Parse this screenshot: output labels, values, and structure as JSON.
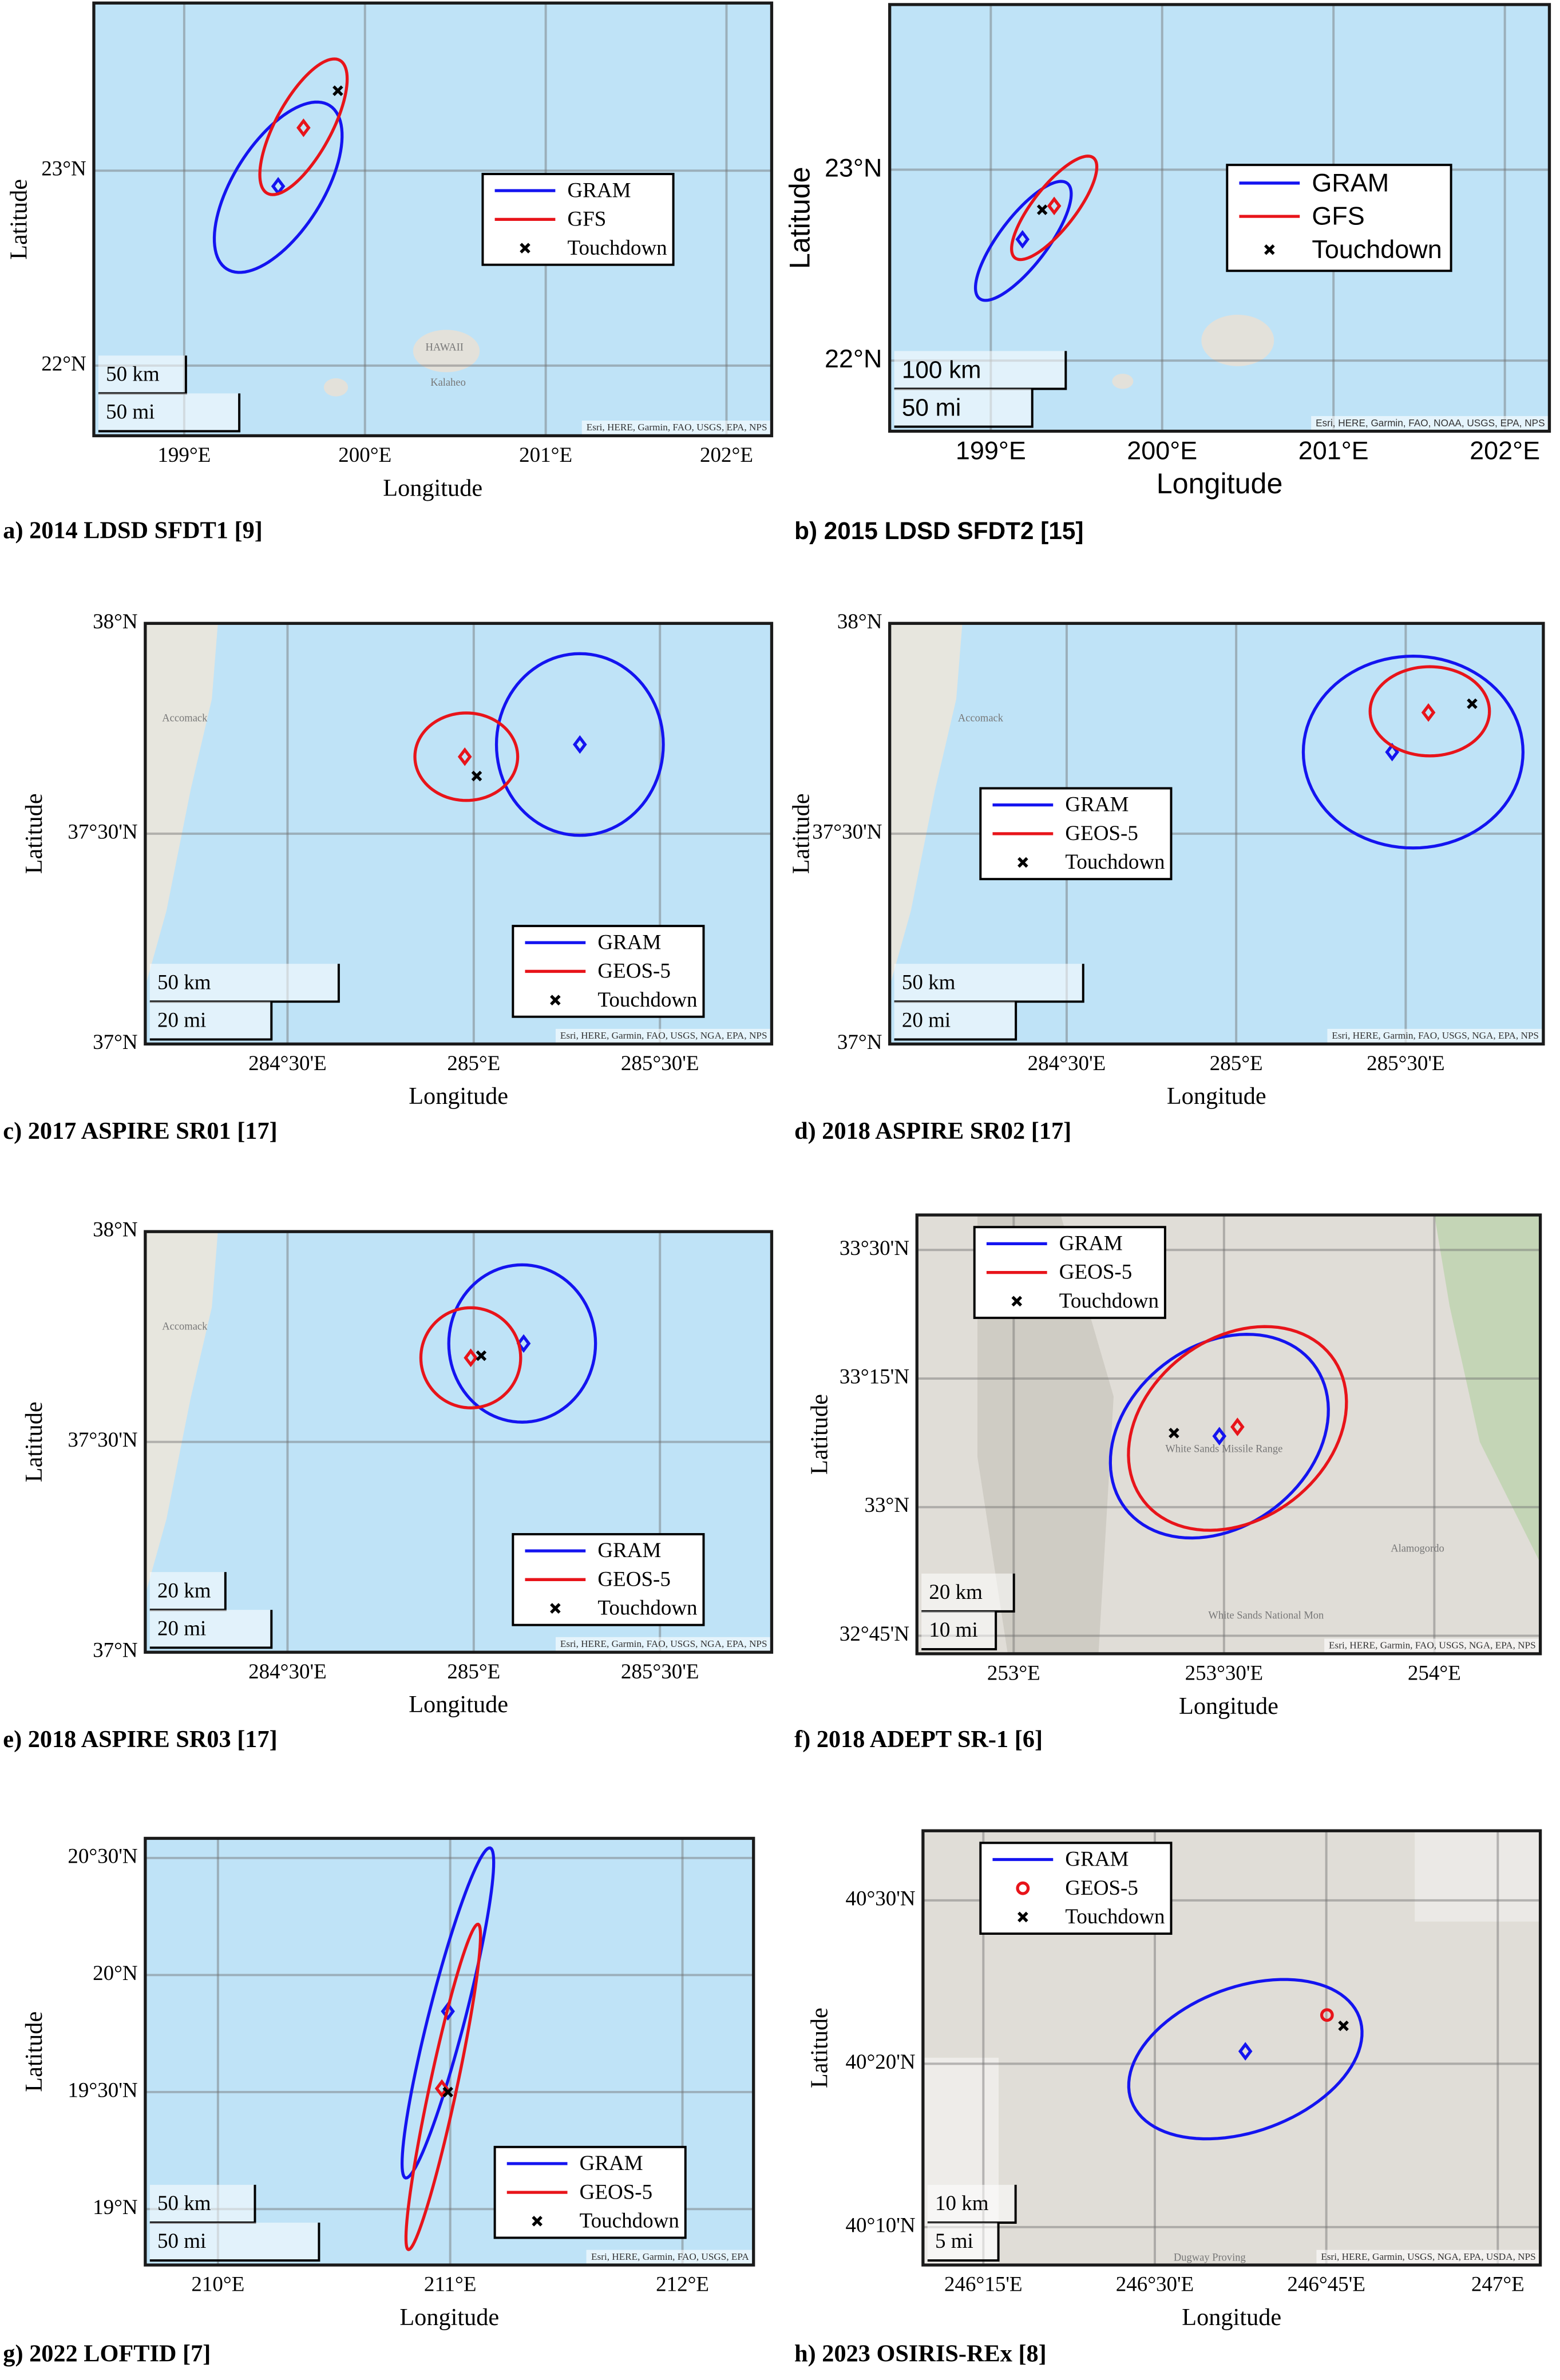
{
  "chart_data": [
    {
      "type": "map",
      "title": "a) 2014 LDSD SFDT1 [9]",
      "xlabel": "Longitude",
      "ylabel": "Latitude",
      "xlim": [
        198.5,
        202.25
      ],
      "ylim": [
        21.64,
        23.86
      ],
      "xticks": [
        {
          "value": 199,
          "label": "199°E"
        },
        {
          "value": 200,
          "label": "200°E"
        },
        {
          "value": 201,
          "label": "201°E"
        },
        {
          "value": 202,
          "label": "202°E"
        }
      ],
      "yticks": [
        {
          "value": 22,
          "label": "22°N"
        },
        {
          "value": 23,
          "label": "23°N"
        }
      ],
      "grid": true,
      "legend": "center right",
      "basemap": "ocean",
      "series": [
        {
          "name": "GRAM",
          "color": "#1414f0",
          "marker": "diamond",
          "point": [
            199.52,
            22.92
          ],
          "ellipse": {
            "center": [
              199.52,
              22.915
            ],
            "u": [
              0.285,
              0.419
            ],
            "v": [
              0.209,
              -0.124
            ]
          }
        },
        {
          "name": "GFS",
          "color": "#e8141a",
          "marker": "diamond",
          "point": [
            199.66,
            23.22
          ],
          "ellipse": {
            "center": [
              199.66,
              23.225
            ],
            "u": [
              0.201,
              0.341
            ],
            "v": [
              0.134,
              -0.07
            ]
          }
        },
        {
          "name": "Touchdown",
          "color": "#000000",
          "marker": "x",
          "point": [
            199.85,
            23.41
          ]
        }
      ],
      "scale_bars": [
        {
          "value": 50,
          "label": "50 km"
        },
        {
          "value": 50,
          "label": "50 mi"
        }
      ],
      "labels": [
        {
          "text": "HAWAII",
          "lon": 200.44,
          "lat": 22.09
        },
        {
          "text": "Kalaheo",
          "lon": 200.46,
          "lat": 21.91
        }
      ],
      "attribution": "Esri, HERE, Garmin, FAO, USGS, EPA, NPS"
    },
    {
      "type": "map",
      "title": "b) 2015 LDSD SFDT2 [15]",
      "xlabel": "Longitude",
      "ylabel": "Latitude",
      "xlim": [
        198.41,
        202.26
      ],
      "ylim": [
        21.63,
        23.865
      ],
      "xticks": [
        {
          "value": 199,
          "label": "199°E"
        },
        {
          "value": 200,
          "label": "200°E"
        },
        {
          "value": 201,
          "label": "201°E"
        },
        {
          "value": 202,
          "label": "202°E"
        }
      ],
      "yticks": [
        {
          "value": 22,
          "label": "22°N"
        },
        {
          "value": 23,
          "label": "23°N"
        }
      ],
      "grid": true,
      "legend": "center right",
      "basemap": "ocean",
      "series": [
        {
          "name": "GRAM",
          "color": "#1414f0",
          "marker": "diamond",
          "point": [
            199.185,
            22.635
          ],
          "ellipse": {
            "center": [
              199.19,
              22.627
            ],
            "u": [
              0.256,
              0.302
            ],
            "v": [
              0.112,
              -0.077
            ]
          }
        },
        {
          "name": "GFS",
          "color": "#e8141a",
          "marker": "diamond",
          "point": [
            199.37,
            22.81
          ],
          "ellipse": {
            "center": [
              199.37,
              22.8
            ],
            "u": [
              0.229,
              0.262
            ],
            "v": [
              0.097,
              -0.069
            ]
          }
        },
        {
          "name": "Touchdown",
          "color": "#000000",
          "marker": "x",
          "point": [
            199.3,
            22.79
          ]
        }
      ],
      "scale_bars": [
        {
          "value": 100,
          "label": "100 km"
        },
        {
          "value": 50,
          "label": "50 mi"
        }
      ],
      "labels": [],
      "attribution": "Esri, HERE, Garmin, FAO, NOAA, USGS, EPA, NPS"
    },
    {
      "type": "map",
      "title": "c) 2017 ASPIRE SR01 [17]",
      "xlabel": "Longitude",
      "ylabel": "Latitude",
      "xlim": [
        284.118,
        285.8
      ],
      "ylim": [
        37,
        38
      ],
      "xticks": [
        {
          "value": 284.5,
          "label": "284°30'E"
        },
        {
          "value": 285,
          "label": "285°E"
        },
        {
          "value": 285.5,
          "label": "285°30'E"
        }
      ],
      "yticks": [
        {
          "value": 37,
          "label": "37°N"
        },
        {
          "value": 37.5,
          "label": "37°30'N"
        },
        {
          "value": 38,
          "label": "38°N"
        }
      ],
      "grid": true,
      "legend": "lower right",
      "basemap": "ocean",
      "series": [
        {
          "name": "GRAM",
          "color": "#1414f0",
          "marker": "diamond",
          "point": [
            285.285,
            37.712
          ],
          "ellipse": {
            "center": [
              285.285,
              37.712
            ],
            "u": [
              0.224,
              0
            ],
            "v": [
              0,
              0.216
            ]
          }
        },
        {
          "name": "GEOS-5",
          "color": "#e8141a",
          "marker": "diamond",
          "point": [
            284.976,
            37.683
          ],
          "ellipse": {
            "center": [
              284.98,
              37.683
            ],
            "u": [
              0.138,
              0
            ],
            "v": [
              0,
              0.104
            ]
          }
        },
        {
          "name": "Touchdown",
          "color": "#000000",
          "marker": "x",
          "point": [
            285.008,
            37.637
          ]
        }
      ],
      "scale_bars": [
        {
          "value": 50,
          "label": "50 km"
        },
        {
          "value": 20,
          "label": "20 mi"
        }
      ],
      "labels": [
        {
          "text": "Accomack",
          "lon": 284.224,
          "lat": 37.773
        }
      ],
      "attribution": "Esri, HERE, Garmin, FAO, USGS, NGA, EPA, NPS"
    },
    {
      "type": "map",
      "title": "d) 2018 ASPIRE SR02 [17]",
      "xlabel": "Longitude",
      "ylabel": "Latitude",
      "xlim": [
        283.978,
        285.906
      ],
      "ylim": [
        37,
        38
      ],
      "xticks": [
        {
          "value": 284.5,
          "label": "284°30'E"
        },
        {
          "value": 285,
          "label": "285°E"
        },
        {
          "value": 285.5,
          "label": "285°30'E"
        }
      ],
      "yticks": [
        {
          "value": 37,
          "label": "37°N"
        },
        {
          "value": 37.5,
          "label": "37°30'N"
        },
        {
          "value": 38,
          "label": "38°N"
        }
      ],
      "grid": true,
      "legend": "center left",
      "basemap": "ocean",
      "series": [
        {
          "name": "GRAM",
          "color": "#1414f0",
          "marker": "diamond",
          "point": [
            285.46,
            37.694
          ],
          "ellipse": {
            "center": [
              285.522,
              37.694
            ],
            "u": [
              0.324,
              0
            ],
            "v": [
              0,
              0.228
            ]
          }
        },
        {
          "name": "GEOS-5",
          "color": "#e8141a",
          "marker": "diamond",
          "point": [
            285.567,
            37.788
          ],
          "ellipse": {
            "center": [
              285.571,
              37.791
            ],
            "u": [
              0.176,
              0
            ],
            "v": [
              0,
              0.106
            ]
          }
        },
        {
          "name": "Touchdown",
          "color": "#000000",
          "marker": "x",
          "point": [
            285.696,
            37.809
          ]
        }
      ],
      "scale_bars": [
        {
          "value": 50,
          "label": "50 km"
        },
        {
          "value": 20,
          "label": "20 mi"
        }
      ],
      "labels": [
        {
          "text": "Accomack",
          "lon": 284.246,
          "lat": 37.773
        }
      ],
      "attribution": "Esri, HERE, Garmin, FAO, USGS, NGA, EPA, NPS"
    },
    {
      "type": "map",
      "title": "e) 2018 ASPIRE SR03 [17]",
      "xlabel": "Longitude",
      "ylabel": "Latitude",
      "xlim": [
        284.118,
        285.8
      ],
      "ylim": [
        37,
        38
      ],
      "xticks": [
        {
          "value": 284.5,
          "label": "284°30'E"
        },
        {
          "value": 285,
          "label": "285°E"
        },
        {
          "value": 285.5,
          "label": "285°30'E"
        }
      ],
      "yticks": [
        {
          "value": 37,
          "label": "37°N"
        },
        {
          "value": 37.5,
          "label": "37°30'N"
        },
        {
          "value": 38,
          "label": "38°N"
        }
      ],
      "grid": true,
      "legend": "lower right",
      "basemap": "ocean",
      "series": [
        {
          "name": "GRAM",
          "color": "#1414f0",
          "marker": "diamond",
          "point": [
            285.134,
            37.734
          ],
          "ellipse": {
            "center": [
              285.13,
              37.734
            ],
            "u": [
              0.197,
              0
            ],
            "v": [
              0,
              0.187
            ]
          }
        },
        {
          "name": "GEOS-5",
          "color": "#e8141a",
          "marker": "diamond",
          "point": [
            284.992,
            37.7
          ],
          "ellipse": {
            "center": [
              284.992,
              37.7
            ],
            "u": [
              0.134,
              0
            ],
            "v": [
              0,
              0.119
            ]
          }
        },
        {
          "name": "Touchdown",
          "color": "#000000",
          "marker": "x",
          "point": [
            285.02,
            37.705
          ]
        }
      ],
      "scale_bars": [
        {
          "value": 20,
          "label": "20 km"
        },
        {
          "value": 20,
          "label": "20 mi"
        }
      ],
      "labels": [
        {
          "text": "Accomack",
          "lon": 284.224,
          "lat": 37.773
        }
      ],
      "attribution": "Esri, HERE, Garmin, FAO, USGS, NGA, EPA, NPS"
    },
    {
      "type": "map",
      "title": "f) 2018 ADEPT SR-1 [6]",
      "xlabel": "Longitude",
      "ylabel": "Latitude",
      "xlim": [
        252.77,
        254.252
      ],
      "ylim": [
        32.715,
        33.568
      ],
      "xticks": [
        {
          "value": 253,
          "label": "253°E"
        },
        {
          "value": 253.5,
          "label": "253°30'E"
        },
        {
          "value": 254,
          "label": "254°E"
        }
      ],
      "yticks": [
        {
          "value": 32.75,
          "label": "32°45'N"
        },
        {
          "value": 33,
          "label": "33°N"
        },
        {
          "value": 33.25,
          "label": "33°15'N"
        },
        {
          "value": 33.5,
          "label": "33°30'N"
        }
      ],
      "grid": true,
      "legend": "upper left",
      "basemap": "land",
      "series": [
        {
          "name": "GRAM",
          "color": "#1414f0",
          "marker": "diamond",
          "point": [
            253.489,
            33.138
          ],
          "ellipse": {
            "center": [
              253.489,
              33.138
            ],
            "u": [
              0.223,
              0.141
            ],
            "v": [
              0.132,
              -0.139
            ]
          }
        },
        {
          "name": "GEOS-5",
          "color": "#e8141a",
          "marker": "diamond",
          "point": [
            253.532,
            33.156
          ],
          "ellipse": {
            "center": [
              253.532,
              33.153
            ],
            "u": [
              0.223,
              0.141
            ],
            "v": [
              0.132,
              -0.139
            ]
          }
        },
        {
          "name": "Touchdown",
          "color": "#000000",
          "marker": "x",
          "point": [
            253.381,
            33.144
          ]
        }
      ],
      "scale_bars": [
        {
          "value": 20,
          "label": "20 km"
        },
        {
          "value": 10,
          "label": "10 mi"
        }
      ],
      "labels": [
        {
          "text": "White Sands Missile Range",
          "lon": 253.5,
          "lat": 33.112
        },
        {
          "text": "Alamogordo",
          "lon": 253.96,
          "lat": 32.918
        },
        {
          "text": "White Sands National Mon",
          "lon": 253.6,
          "lat": 32.788
        }
      ],
      "attribution": "Esri, HERE, Garmin, FAO, USGS, NGA, EPA, NPS"
    },
    {
      "type": "map",
      "title": "g) 2022 LOFTID [7]",
      "xlabel": "Longitude",
      "ylabel": "Latitude",
      "xlim": [
        209.687,
        212.306
      ],
      "ylim": [
        18.761,
        20.584
      ],
      "xticks": [
        {
          "value": 210,
          "label": "210°E"
        },
        {
          "value": 211,
          "label": "211°E"
        },
        {
          "value": 212,
          "label": "212°E"
        }
      ],
      "yticks": [
        {
          "value": 19,
          "label": "19°N"
        },
        {
          "value": 19.5,
          "label": "19°30'N"
        },
        {
          "value": 20,
          "label": "20°N"
        },
        {
          "value": 20.5,
          "label": "20°30'N"
        }
      ],
      "grid": true,
      "legend": "lower right",
      "basemap": "ocean",
      "series": [
        {
          "name": "GRAM",
          "color": "#1414f0",
          "marker": "diamond",
          "point": [
            210.99,
            19.845
          ],
          "ellipse": {
            "center": [
              210.99,
              19.838
            ],
            "u": [
              0.182,
              0.705
            ],
            "v": [
              0.076,
              -0.019
            ]
          }
        },
        {
          "name": "GEOS-5",
          "color": "#e8141a",
          "marker": "diamond",
          "point": [
            210.964,
            19.515
          ],
          "ellipse": {
            "center": [
              210.97,
              19.522
            ],
            "u": [
              0.15,
              0.695
            ],
            "v": [
              0.057,
              -0.012
            ]
          }
        },
        {
          "name": "Touchdown",
          "color": "#000000",
          "marker": "x",
          "point": [
            210.99,
            19.5
          ]
        }
      ],
      "scale_bars": [
        {
          "value": 50,
          "label": "50 km"
        },
        {
          "value": 50,
          "label": "50 mi"
        }
      ],
      "labels": [],
      "attribution": "Esri, HERE, Garmin, FAO, USGS, EPA"
    },
    {
      "type": "map",
      "title": "h) 2023 OSIRIS-REx [8]",
      "xlabel": "Longitude",
      "ylabel": "Latitude",
      "xlim": [
        246.162,
        247.062
      ],
      "ylim": [
        40.128,
        40.571
      ],
      "xticks": [
        {
          "value": 246.25,
          "label": "246°15'E"
        },
        {
          "value": 246.5,
          "label": "246°30'E"
        },
        {
          "value": 246.75,
          "label": "246°45'E"
        },
        {
          "value": 247,
          "label": "247°E"
        }
      ],
      "yticks": [
        {
          "value": 40.16667,
          "label": "40°10'N"
        },
        {
          "value": 40.33333,
          "label": "40°20'N"
        },
        {
          "value": 40.5,
          "label": "40°30'N"
        }
      ],
      "grid": true,
      "legend": "upper left",
      "basemap": "land",
      "series": [
        {
          "name": "GRAM",
          "color": "#1414f0",
          "marker": "diamond",
          "point": [
            246.632,
            40.346
          ],
          "ellipse": {
            "center": [
              246.632,
              40.338
            ],
            "u": [
              0.166,
              0.043
            ],
            "v": [
              0.037,
              -0.069
            ]
          }
        },
        {
          "name": "GEOS-5",
          "color": "#e8141a",
          "marker": "circle",
          "point": [
            246.751,
            40.383
          ]
        },
        {
          "name": "Touchdown",
          "color": "#000000",
          "marker": "x",
          "point": [
            246.775,
            40.372
          ]
        }
      ],
      "scale_bars": [
        {
          "value": 10,
          "label": "10 km"
        },
        {
          "value": 5,
          "label": "5 mi"
        }
      ],
      "labels": [
        {
          "text": "Dugway Proving",
          "lon": 246.58,
          "lat": 40.135
        }
      ],
      "attribution": "Esri, HERE, Garmin, USGS, NGA, EPA, USDA, NPS"
    }
  ]
}
